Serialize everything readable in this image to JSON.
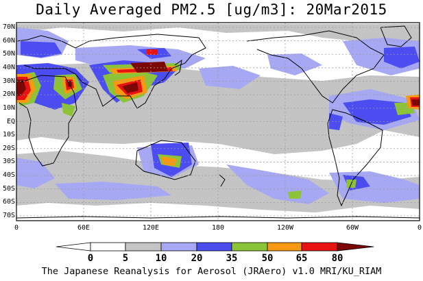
{
  "title": "Daily Averaged PM2.5 [ug/m3]: 20Mar2015",
  "footer": "The Japanese Reanalysis for Aerosol (JRAero) v1.0 MRI/KU_RIAM",
  "lat_labels": [
    "70N",
    "60N",
    "50N",
    "40N",
    "30N",
    "20N",
    "10N",
    "EQ",
    "10S",
    "20S",
    "30S",
    "40S",
    "50S",
    "60S",
    "70S"
  ],
  "lon_labels": [
    "0",
    "60E",
    "120E",
    "180",
    "120W",
    "60W",
    "0"
  ],
  "colorbar": {
    "ticks": [
      "0",
      "5",
      "10",
      "20",
      "35",
      "50",
      "65",
      "80"
    ],
    "colors": [
      "#ffffff",
      "#ffffff",
      "#c4c4c4",
      "#a6a8f4",
      "#4b4df0",
      "#8dc437",
      "#f59a12",
      "#e81212",
      "#7d0707"
    ]
  },
  "colors": {
    "land_outline": "#000000",
    "grid": "#9a9a9a",
    "level_5": "#c4c4c4",
    "level_10": "#a6a8f4",
    "level_20": "#4b4df0",
    "level_35": "#8dc437",
    "level_50": "#f59a12",
    "level_65": "#e81212",
    "level_80": "#7d0707"
  }
}
